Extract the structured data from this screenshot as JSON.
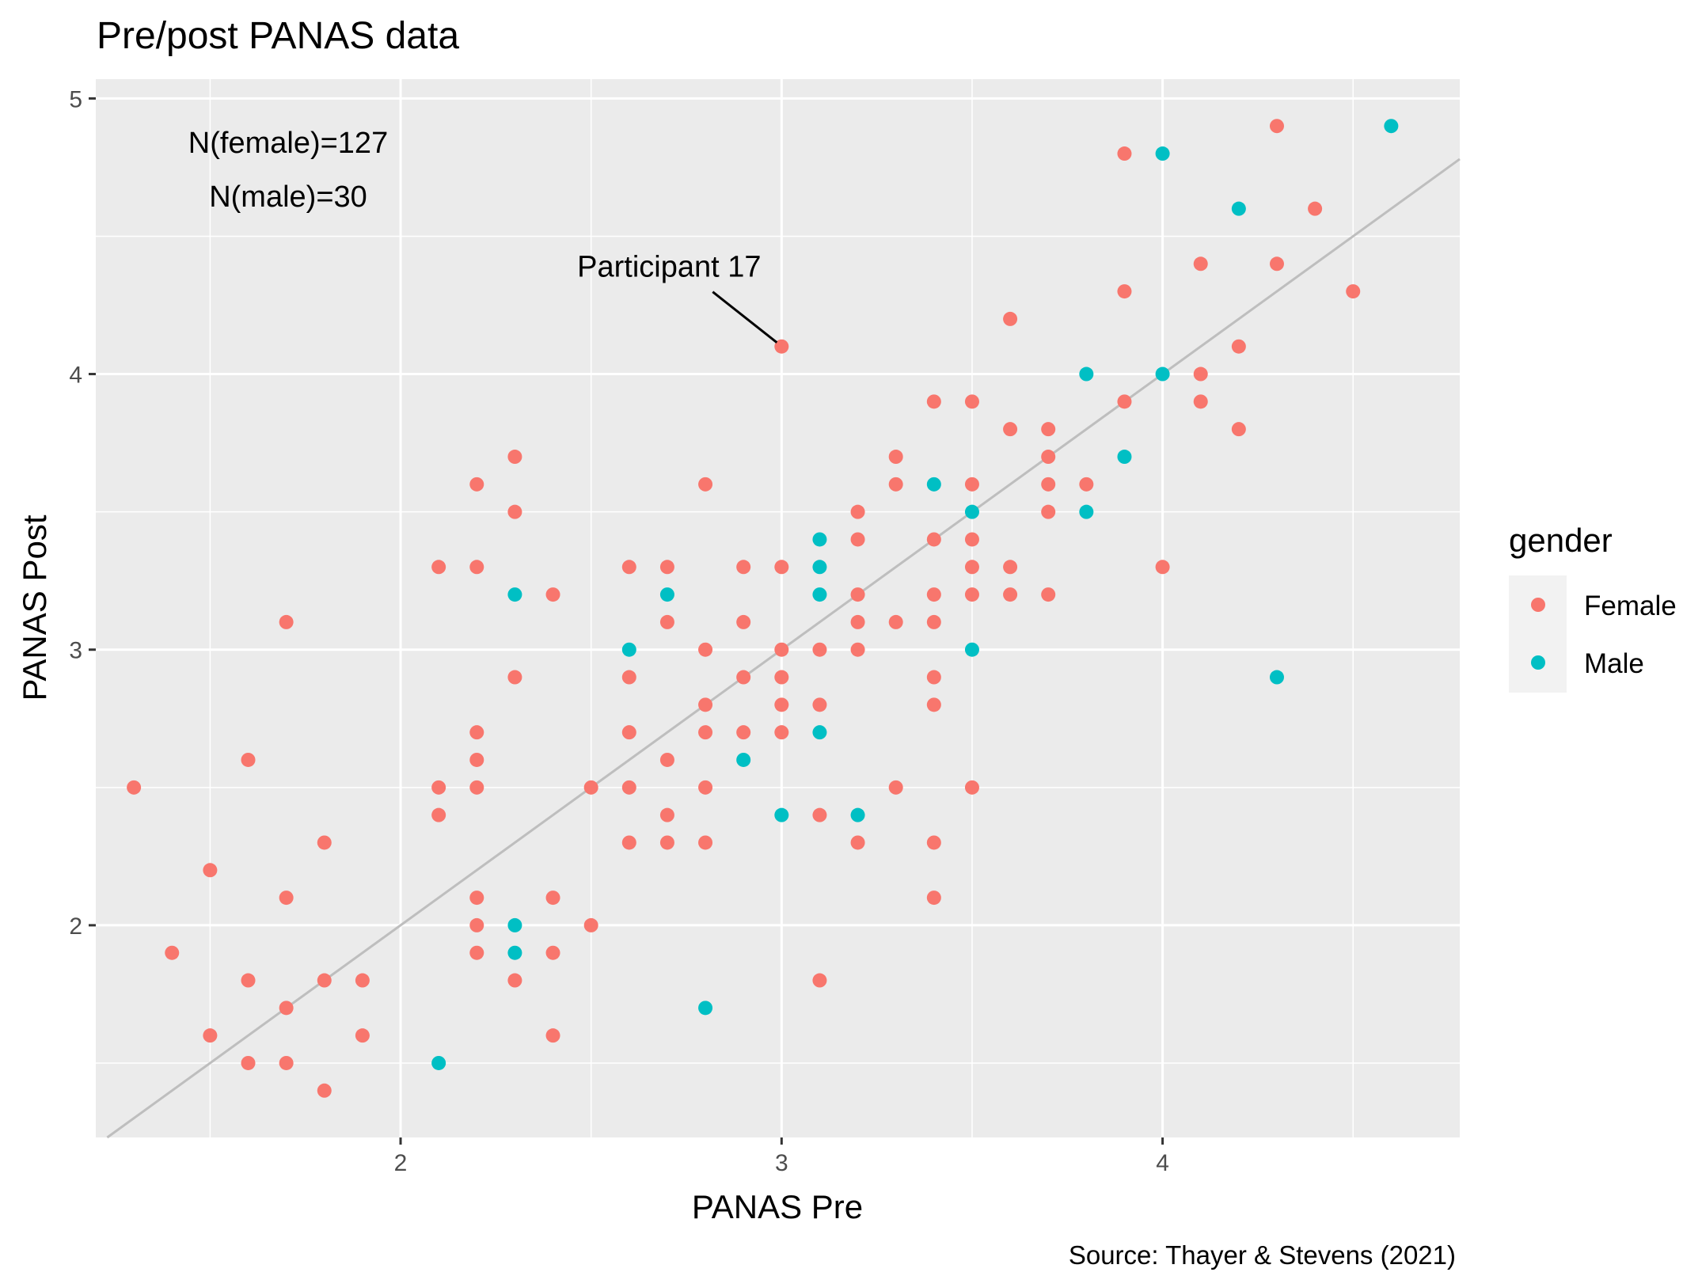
{
  "chart_data": {
    "type": "scatter",
    "title": "Pre/post PANAS data",
    "xlabel": "PANAS Pre",
    "ylabel": "PANAS Post",
    "caption": "Source: Thayer & Stevens (2021)",
    "xlim": [
      1.2,
      4.78
    ],
    "ylim": [
      1.23,
      5.07
    ],
    "x_ticks": [
      2,
      3,
      4
    ],
    "y_ticks": [
      2,
      3,
      4,
      5
    ],
    "grid": true,
    "panel_background": "#ebebeb",
    "legend": {
      "title": "gender",
      "position": "right",
      "entries": [
        {
          "label": "Female",
          "color": "#f8766d"
        },
        {
          "label": "Male",
          "color": "#00bfc4"
        }
      ]
    },
    "annotations": {
      "counts": [
        "N(female)=127",
        "N(male)=30"
      ],
      "participant_label": "Participant 17",
      "participant_point": {
        "x": 3.0,
        "y": 4.1
      }
    },
    "reference_line": {
      "slope": 1,
      "intercept": 0,
      "color": "#bebebe"
    },
    "series": [
      {
        "name": "Female",
        "color": "#f8766d",
        "points": [
          [
            1.3,
            2.5
          ],
          [
            1.4,
            1.9
          ],
          [
            1.5,
            2.2
          ],
          [
            1.5,
            1.6
          ],
          [
            1.6,
            2.6
          ],
          [
            1.6,
            1.8
          ],
          [
            1.6,
            1.5
          ],
          [
            1.7,
            3.1
          ],
          [
            1.7,
            2.1
          ],
          [
            1.7,
            1.7
          ],
          [
            1.7,
            1.5
          ],
          [
            1.8,
            2.3
          ],
          [
            1.8,
            1.8
          ],
          [
            1.8,
            1.4
          ],
          [
            1.9,
            1.8
          ],
          [
            1.9,
            1.6
          ],
          [
            2.1,
            3.3
          ],
          [
            2.1,
            2.5
          ],
          [
            2.1,
            2.4
          ],
          [
            2.2,
            3.6
          ],
          [
            2.2,
            3.3
          ],
          [
            2.2,
            2.7
          ],
          [
            2.2,
            2.6
          ],
          [
            2.2,
            2.5
          ],
          [
            2.2,
            2.1
          ],
          [
            2.2,
            2.0
          ],
          [
            2.2,
            1.9
          ],
          [
            2.3,
            3.7
          ],
          [
            2.3,
            3.5
          ],
          [
            2.3,
            2.9
          ],
          [
            2.3,
            1.8
          ],
          [
            2.4,
            3.2
          ],
          [
            2.4,
            2.1
          ],
          [
            2.4,
            1.9
          ],
          [
            2.4,
            1.6
          ],
          [
            2.5,
            2.5
          ],
          [
            2.5,
            2.0
          ],
          [
            2.6,
            3.3
          ],
          [
            2.6,
            2.9
          ],
          [
            2.6,
            2.7
          ],
          [
            2.6,
            2.5
          ],
          [
            2.6,
            2.3
          ],
          [
            2.7,
            3.3
          ],
          [
            2.7,
            3.1
          ],
          [
            2.7,
            2.6
          ],
          [
            2.7,
            2.4
          ],
          [
            2.7,
            2.3
          ],
          [
            2.8,
            3.6
          ],
          [
            2.8,
            3.0
          ],
          [
            2.8,
            2.8
          ],
          [
            2.8,
            2.7
          ],
          [
            2.8,
            2.5
          ],
          [
            2.8,
            2.3
          ],
          [
            2.9,
            3.3
          ],
          [
            2.9,
            3.1
          ],
          [
            2.9,
            2.9
          ],
          [
            2.9,
            2.7
          ],
          [
            3.0,
            4.1
          ],
          [
            3.0,
            3.3
          ],
          [
            3.0,
            3.0
          ],
          [
            3.0,
            2.9
          ],
          [
            3.0,
            2.8
          ],
          [
            3.0,
            2.7
          ],
          [
            3.1,
            3.0
          ],
          [
            3.1,
            2.8
          ],
          [
            3.1,
            2.4
          ],
          [
            3.1,
            1.8
          ],
          [
            3.2,
            3.5
          ],
          [
            3.2,
            3.4
          ],
          [
            3.2,
            3.2
          ],
          [
            3.2,
            3.1
          ],
          [
            3.2,
            3.0
          ],
          [
            3.2,
            2.3
          ],
          [
            3.3,
            3.7
          ],
          [
            3.3,
            3.6
          ],
          [
            3.3,
            3.1
          ],
          [
            3.3,
            2.5
          ],
          [
            3.4,
            3.9
          ],
          [
            3.4,
            3.4
          ],
          [
            3.4,
            3.2
          ],
          [
            3.4,
            3.1
          ],
          [
            3.4,
            2.9
          ],
          [
            3.4,
            2.8
          ],
          [
            3.4,
            2.3
          ],
          [
            3.4,
            2.1
          ],
          [
            3.5,
            3.9
          ],
          [
            3.5,
            3.6
          ],
          [
            3.5,
            3.4
          ],
          [
            3.5,
            3.3
          ],
          [
            3.5,
            3.2
          ],
          [
            3.5,
            2.5
          ],
          [
            3.6,
            4.2
          ],
          [
            3.6,
            3.8
          ],
          [
            3.6,
            3.3
          ],
          [
            3.6,
            3.2
          ],
          [
            3.7,
            3.8
          ],
          [
            3.7,
            3.7
          ],
          [
            3.7,
            3.6
          ],
          [
            3.7,
            3.5
          ],
          [
            3.7,
            3.2
          ],
          [
            3.8,
            3.6
          ],
          [
            3.9,
            4.8
          ],
          [
            3.9,
            4.3
          ],
          [
            3.9,
            3.9
          ],
          [
            4.0,
            3.3
          ],
          [
            4.1,
            4.4
          ],
          [
            4.1,
            4.0
          ],
          [
            4.1,
            3.9
          ],
          [
            4.2,
            4.1
          ],
          [
            4.2,
            3.8
          ],
          [
            4.3,
            4.9
          ],
          [
            4.3,
            4.4
          ],
          [
            4.4,
            4.6
          ],
          [
            4.5,
            4.3
          ]
        ]
      },
      {
        "name": "Male",
        "color": "#00bfc4",
        "points": [
          [
            2.1,
            1.5
          ],
          [
            2.3,
            3.2
          ],
          [
            2.3,
            2.0
          ],
          [
            2.3,
            1.9
          ],
          [
            2.6,
            3.0
          ],
          [
            2.7,
            3.2
          ],
          [
            2.8,
            1.7
          ],
          [
            2.9,
            2.6
          ],
          [
            3.0,
            2.4
          ],
          [
            3.1,
            3.4
          ],
          [
            3.1,
            3.3
          ],
          [
            3.1,
            3.2
          ],
          [
            3.1,
            2.7
          ],
          [
            3.2,
            2.4
          ],
          [
            3.4,
            3.6
          ],
          [
            3.5,
            3.5
          ],
          [
            3.5,
            3.0
          ],
          [
            3.8,
            4.0
          ],
          [
            3.8,
            3.5
          ],
          [
            3.9,
            3.7
          ],
          [
            4.0,
            4.8
          ],
          [
            4.0,
            4.0
          ],
          [
            4.2,
            4.6
          ],
          [
            4.3,
            2.9
          ],
          [
            4.6,
            4.9
          ]
        ]
      }
    ]
  }
}
